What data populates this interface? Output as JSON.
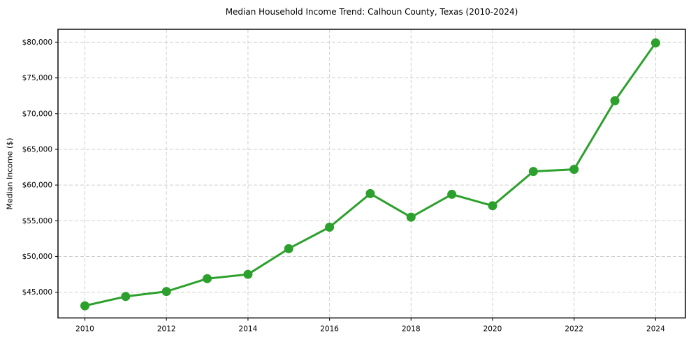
{
  "page": {
    "title": "Median Household Income Trend: Calhoun County, Texas (2010-2024)"
  },
  "chart_data": {
    "type": "line",
    "title": "Median Household Income Trend: Calhoun County, Texas (2010-2024)",
    "xlabel": "",
    "ylabel": "Median Income ($)",
    "x": [
      2010,
      2011,
      2012,
      2013,
      2014,
      2015,
      2016,
      2017,
      2018,
      2019,
      2020,
      2021,
      2022,
      2023,
      2024
    ],
    "series": [
      {
        "name": "Median Household Income",
        "values": [
          43100,
          44400,
          45100,
          46900,
          47500,
          51100,
          54100,
          58800,
          55500,
          58700,
          57100,
          61900,
          62200,
          71800,
          79900
        ]
      }
    ],
    "xlim": [
      2009.34,
      2024.73
    ],
    "ylim": [
      41400,
      81800
    ],
    "xticks": {
      "values": [
        2010,
        2012,
        2014,
        2016,
        2018,
        2020,
        2022,
        2024
      ],
      "labels": [
        "2010",
        "2012",
        "2014",
        "2016",
        "2018",
        "2020",
        "2022",
        "2024"
      ]
    },
    "yticks": {
      "values": [
        45000,
        50000,
        55000,
        60000,
        65000,
        70000,
        75000,
        80000
      ],
      "labels": [
        "$45,000",
        "$50,000",
        "$55,000",
        "$60,000",
        "$65,000",
        "$70,000",
        "$75,000",
        "$80,000"
      ]
    },
    "grid": true,
    "legend": "none",
    "marker": "circle",
    "colors": {
      "line": "#2ca02c",
      "marker": "#2ca02c",
      "grid": "#cfcfcf",
      "spine": "#1a1a1a",
      "text": "#000000",
      "background": "#ffffff"
    }
  }
}
